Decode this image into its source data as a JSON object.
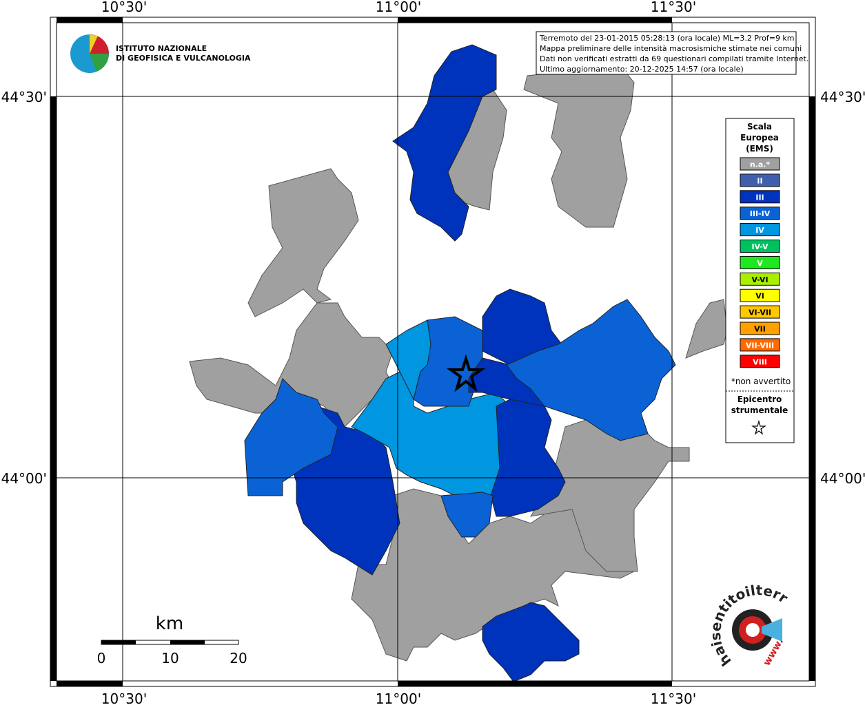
{
  "frame": {
    "top_labels": [
      "10°30'",
      "11°00'",
      "11°30'"
    ],
    "bottom_labels": [
      "10°30'",
      "11°00'",
      "11°30'"
    ],
    "left_labels": [
      "44°30'",
      "44°00'"
    ],
    "right_labels": [
      "44°30'",
      "44°00'"
    ]
  },
  "info_box": {
    "lines": [
      "Terremoto del 23-01-2015 05:28:13 (ora locale) ML=3.2 Prof=9 km",
      "Mappa preliminare delle intensità macrosismiche stimate nei comuni",
      "Dati non verificati estratti da 69 questionari compilati tramite Internet.",
      "Ultimo aggiornamento: 20-12-2025 14:57 (ora locale)"
    ]
  },
  "logo": {
    "lines": [
      "ISTITUTO NAZIONALE",
      "DI GEOFISICA E VULCANOLOGIA"
    ]
  },
  "legend": {
    "title_lines": [
      "Scala",
      "Europea",
      "(EMS)"
    ],
    "items": [
      {
        "label": "n.a.*",
        "color": "#a0a0a0"
      },
      {
        "label": "II",
        "color": "#3f5fae"
      },
      {
        "label": "III",
        "color": "#0033bb"
      },
      {
        "label": "III-IV",
        "color": "#0a62d4"
      },
      {
        "label": "IV",
        "color": "#0096e0"
      },
      {
        "label": "IV-V",
        "color": "#00c060"
      },
      {
        "label": "V",
        "color": "#20e820"
      },
      {
        "label": "V-VI",
        "color": "#a8f000"
      },
      {
        "label": "VI",
        "color": "#ffff00"
      },
      {
        "label": "VI-VII",
        "color": "#ffc800"
      },
      {
        "label": "VII",
        "color": "#ffa000"
      },
      {
        "label": "VII-VIII",
        "color": "#ff6a00"
      },
      {
        "label": "VIII",
        "color": "#ff0000"
      }
    ],
    "note": "*non avvertito",
    "epicenter_lines": [
      "Epicentro",
      "strumentale"
    ]
  },
  "scale_bar": {
    "unit": "km",
    "labels": [
      "0",
      "10",
      "20"
    ]
  },
  "badge": {
    "text": "haisentitoilterremoto.it",
    "www": "www."
  }
}
